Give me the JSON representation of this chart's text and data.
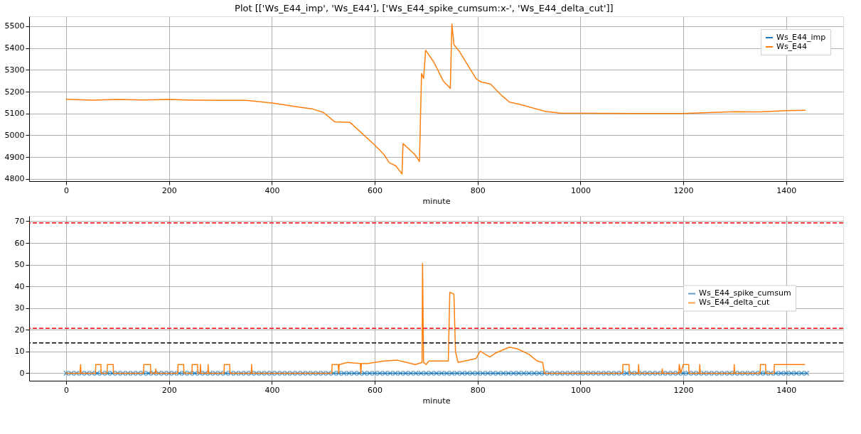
{
  "chart_data": [
    {
      "type": "line",
      "title": "Plot [['Ws_E44_imp', 'Ws_E44'], ['Ws_E44_spike_cumsum:x-', 'Ws_E44_delta_cut']]",
      "xlabel": "minute",
      "x": [
        0,
        50,
        100,
        150,
        200,
        250,
        300,
        350,
        403,
        450,
        480,
        500,
        522,
        552,
        600,
        618,
        628,
        641,
        653,
        655,
        678,
        687,
        691,
        695,
        699,
        715,
        733,
        747,
        750,
        754,
        765,
        797,
        806,
        825,
        848,
        862,
        885,
        931,
        963,
        1022,
        1100,
        1200,
        1300,
        1350,
        1400,
        1437
      ],
      "series": [
        {
          "name": "Ws_E44_imp",
          "color": "#1f77b4",
          "values": [
            null,
            null,
            null,
            null,
            null,
            null,
            null,
            null,
            null,
            null,
            null,
            null,
            null,
            null,
            null,
            null,
            null,
            null,
            null,
            null,
            null,
            null,
            null,
            null,
            null,
            null,
            null,
            null,
            null,
            null,
            null,
            null,
            null,
            null,
            null,
            null,
            null,
            null,
            null,
            null,
            null,
            null,
            null,
            null,
            null,
            null
          ]
        },
        {
          "name": "Ws_E44",
          "color": "#ff7f0e",
          "values": [
            5165,
            5161,
            5164,
            5162,
            5164,
            5161,
            5160,
            5160,
            5147,
            5130,
            5120,
            5105,
            5062,
            5059,
            4955,
            4912,
            4875,
            4860,
            4823,
            4962,
            4912,
            4880,
            5283,
            5260,
            5390,
            5335,
            5250,
            5215,
            5510,
            5415,
            5383,
            5260,
            5245,
            5235,
            5180,
            5152,
            5140,
            5110,
            5101,
            5101,
            5100,
            5100,
            5108,
            5107,
            5113,
            5115
          ]
        }
      ],
      "xlim": [
        -72,
        1511
      ],
      "xticks": [
        0,
        200,
        400,
        600,
        800,
        1000,
        1200,
        1400
      ],
      "ylim": [
        4790,
        5545
      ],
      "yticks": [
        4800,
        4900,
        5000,
        5100,
        5200,
        5300,
        5400,
        5500
      ],
      "grid": true,
      "legend": "top right",
      "line_style": "solid"
    },
    {
      "type": "line",
      "xlabel": "minute",
      "series": [
        {
          "name": "Ws_E44_spike_cumsum",
          "color": "#1f77b4",
          "marker": "cross",
          "x": [
            0,
            10,
            20,
            30,
            40,
            50,
            60,
            70,
            80,
            90,
            100,
            110,
            120,
            130,
            140,
            150,
            160,
            170,
            180,
            190,
            200,
            210,
            220,
            230,
            240,
            250,
            260,
            270,
            280,
            290,
            300,
            310,
            320,
            330,
            340,
            350,
            360,
            370,
            380,
            390,
            400,
            410,
            420,
            430,
            440,
            450,
            460,
            470,
            480,
            490,
            500,
            510,
            520,
            530,
            540,
            550,
            560,
            570,
            580,
            590,
            600,
            610,
            620,
            630,
            640,
            650,
            660,
            670,
            680,
            690,
            700,
            710,
            720,
            730,
            740,
            750,
            760,
            770,
            780,
            790,
            800,
            810,
            820,
            830,
            840,
            850,
            860,
            870,
            880,
            890,
            900,
            910,
            920,
            930,
            940,
            950,
            960,
            970,
            980,
            990,
            1000,
            1010,
            1020,
            1030,
            1040,
            1050,
            1060,
            1070,
            1080,
            1090,
            1100,
            1110,
            1120,
            1130,
            1140,
            1150,
            1160,
            1170,
            1180,
            1190,
            1200,
            1210,
            1220,
            1230,
            1240,
            1250,
            1260,
            1270,
            1280,
            1290,
            1300,
            1310,
            1320,
            1330,
            1340,
            1350,
            1360,
            1370,
            1380,
            1390,
            1400,
            1410,
            1420,
            1430,
            1440
          ],
          "values": [
            0,
            0,
            0,
            0,
            0,
            0,
            0,
            0,
            0,
            0,
            0,
            0,
            0,
            0,
            0,
            0,
            0,
            0,
            0,
            0,
            0,
            0,
            0,
            0,
            0,
            0,
            0,
            0,
            0,
            0,
            0,
            0,
            0,
            0,
            0,
            0,
            0,
            0,
            0,
            0,
            0,
            0,
            0,
            0,
            0,
            0,
            0,
            0,
            0,
            0,
            0,
            0,
            0,
            0,
            0,
            0,
            0,
            0,
            0,
            0,
            0,
            0,
            0,
            0,
            0,
            0,
            0,
            0,
            0,
            0,
            0,
            0,
            0,
            0,
            0,
            0,
            0,
            0,
            0,
            0,
            0,
            0,
            0,
            0,
            0,
            0,
            0,
            0,
            0,
            0,
            0,
            0,
            0,
            0,
            0,
            0,
            0,
            0,
            0,
            0,
            0,
            0,
            0,
            0,
            0,
            0,
            0,
            0,
            0,
            0,
            0,
            0,
            0,
            0,
            0,
            0,
            0,
            0,
            0,
            0,
            0,
            0,
            0,
            0,
            0,
            0,
            0,
            0,
            0,
            0,
            0,
            0,
            0,
            0,
            0,
            0,
            0,
            0,
            0,
            0,
            0,
            0,
            0,
            0,
            0
          ]
        },
        {
          "name": "Ws_E44_delta_cut",
          "color": "#ff7f0e",
          "x": [
            0,
            27,
            28,
            29,
            57,
            57.5,
            67.5,
            68,
            79.5,
            80,
            91.5,
            92,
            150.5,
            151,
            164,
            164.5,
            173.5,
            174,
            175,
            217,
            217.5,
            228.5,
            229,
            244.5,
            245,
            255.5,
            256,
            260.5,
            261,
            262,
            275.5,
            276,
            277,
            307,
            307.5,
            318,
            318.5,
            360,
            360.5,
            361.5,
            516.5,
            517,
            529,
            530,
            531,
            547,
            572,
            573,
            574,
            586,
            618,
            644,
            679,
            692,
            693,
            695,
            700,
            705,
            743,
            746,
            754,
            757,
            762,
            797,
            805,
            824,
            835,
            862,
            878,
            900,
            916,
            926.5,
            930,
            1082,
            1082.5,
            1094.5,
            1095,
            1112.5,
            1113,
            1114,
            1158.5,
            1159,
            1160,
            1191.5,
            1192,
            1195,
            1200,
            1210.5,
            1211,
            1231.5,
            1232,
            1233,
            1298.5,
            1299,
            1300,
            1349.5,
            1350,
            1360,
            1360.5,
            1376.5,
            1377,
            1436
          ],
          "values": [
            0,
            0,
            4,
            0,
            0,
            4,
            4,
            0,
            0,
            4,
            4,
            0,
            0,
            4,
            4,
            0,
            0,
            2,
            0,
            0,
            4,
            4,
            0,
            0,
            4,
            4,
            0,
            0,
            4,
            0,
            0,
            4,
            0,
            0,
            4,
            4,
            0,
            0,
            4,
            0,
            0,
            4,
            4,
            0,
            4,
            5,
            4.5,
            0,
            4.5,
            4.5,
            5.6,
            6,
            4,
            5,
            50.5,
            5,
            4,
            5.6,
            5.6,
            37.3,
            36.4,
            10,
            5,
            6.8,
            10.2,
            7.5,
            9.3,
            12,
            11.2,
            8.7,
            5.6,
            5,
            0,
            0,
            4,
            4,
            0,
            0,
            4,
            0,
            0,
            2,
            0,
            0,
            4,
            0,
            4,
            4,
            0,
            0,
            4,
            0,
            0,
            4,
            0,
            0,
            4,
            4,
            0,
            0,
            4,
            4
          ]
        }
      ],
      "xlim": [
        -72,
        1511
      ],
      "xticks": [
        0,
        200,
        400,
        600,
        800,
        1000,
        1200,
        1400
      ],
      "ylim": [
        -3.45,
        72.45
      ],
      "yticks": [
        0,
        10,
        20,
        30,
        40,
        50,
        60,
        70
      ],
      "ref_lines": [
        {
          "axis": "y",
          "value": 69.3,
          "color": "#ff0000",
          "line_style": "dashed"
        },
        {
          "axis": "y",
          "value": 20.7,
          "color": "#ff0000",
          "line_style": "dashed"
        },
        {
          "axis": "y",
          "value": 14,
          "color": "#000000",
          "line_style": "dashed"
        }
      ],
      "grid": true,
      "legend": "right",
      "line_style": "solid"
    }
  ]
}
